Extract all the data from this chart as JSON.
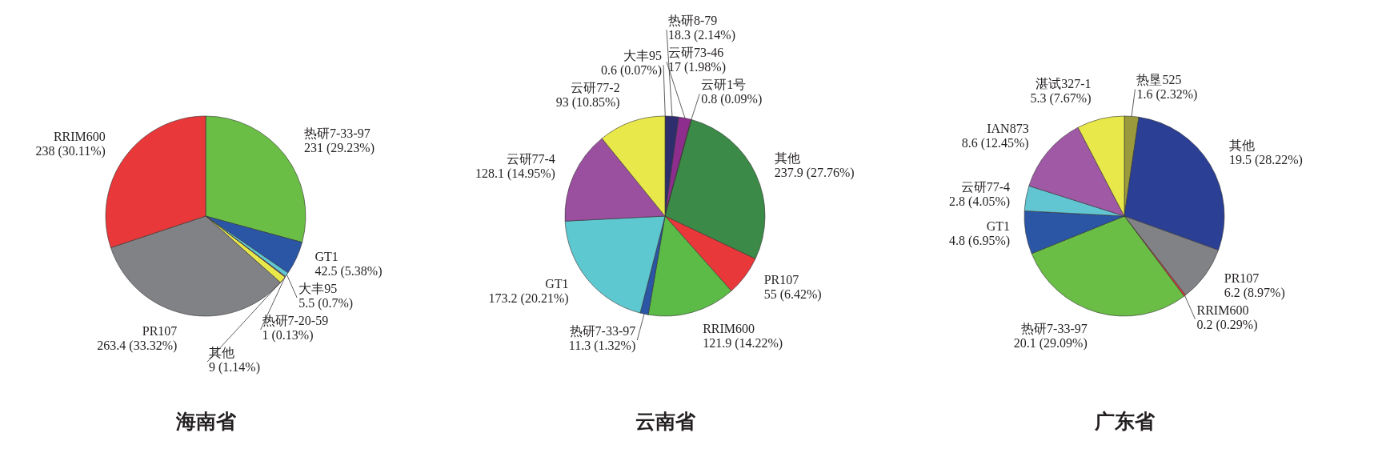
{
  "chart_data": [
    {
      "type": "pie",
      "title": "海南省",
      "categories": [
        "热研7-33-97",
        "GT1",
        "大丰95",
        "热研7-20-59",
        "其他",
        "PR107",
        "RRIM600"
      ],
      "values": [
        231,
        42.5,
        5.5,
        1,
        9,
        263.4,
        238
      ],
      "colors": [
        "#6abd45",
        "#2b55a5",
        "#5ec8d4",
        "#9b4f9b",
        "#e8e84a",
        "#808285",
        "#e8383a"
      ],
      "value_labels": [
        "231 (29.23%)",
        "42.5 (5.38%)",
        "5.5 (0.7%)",
        "1 (0.13%)",
        "9 (1.14%)",
        "263.4 (33.32%)",
        "238 (30.11%)"
      ]
    },
    {
      "type": "pie",
      "title": "云南省",
      "categories": [
        "大丰95",
        "热研8-79",
        "云研73-46",
        "云研1号",
        "其他",
        "PR107",
        "RRIM600",
        "热研7-33-97",
        "GT1",
        "云研77-4",
        "云研77-2"
      ],
      "values": [
        0.6,
        18.3,
        17,
        0.8,
        237.9,
        55,
        121.9,
        11.3,
        173.2,
        128.1,
        93
      ],
      "colors": [
        "#f0a030",
        "#2e2d6e",
        "#8e2d8e",
        "#d04080",
        "#3b8a47",
        "#e8383a",
        "#5cba47",
        "#2b55a5",
        "#5ec8d0",
        "#9b4f9f",
        "#e8e84a"
      ],
      "value_labels": [
        "0.6 (0.07%)",
        "18.3 (2.14%)",
        "17 (1.98%)",
        "0.8 (0.09%)",
        "237.9 (27.76%)",
        "55 (6.42%)",
        "121.9 (14.22%)",
        "11.3 (1.32%)",
        "173.2 (20.21%)",
        "128.1 (14.95%)",
        "93 (10.85%)"
      ]
    },
    {
      "type": "pie",
      "title": "广东省",
      "categories": [
        "热垦525",
        "其他",
        "PR107",
        "RRIM600",
        "热研7-33-97",
        "GT1",
        "云研77-4",
        "IAN873",
        "湛试327-1"
      ],
      "values": [
        1.6,
        19.5,
        6.2,
        0.2,
        20.1,
        4.8,
        2.8,
        8.6,
        5.3
      ],
      "colors": [
        "#9a9a3c",
        "#2b3f95",
        "#808285",
        "#e8383a",
        "#6abd45",
        "#2b55a5",
        "#62c6d2",
        "#a05aa5",
        "#e8e84a"
      ],
      "value_labels": [
        "1.6 (2.32%)",
        "19.5 (28.22%)",
        "6.2 (8.97%)",
        "0.2 (0.29%)",
        "20.1 (29.09%)",
        "4.8 (6.95%)",
        "2.8 (4.05%)",
        "8.6 (12.45%)",
        "5.3 (7.67%)"
      ]
    }
  ]
}
